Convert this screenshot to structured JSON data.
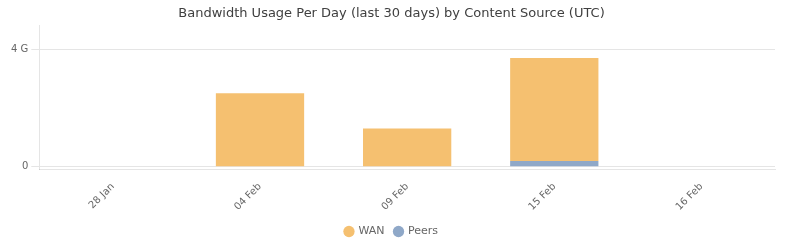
{
  "chart_data": {
    "type": "bar",
    "title": "Bandwidth Usage Per Day (last 30 days) by Content Source (UTC)",
    "categories": [
      "28 Jan",
      "04 Feb",
      "09 Feb",
      "15 Feb",
      "16 Feb"
    ],
    "series": [
      {
        "name": "Peers",
        "color": "#8fa8c8",
        "values": [
          0,
          0,
          0,
          0.2,
          0
        ]
      },
      {
        "name": "WAN",
        "color": "#f5c070",
        "values": [
          0,
          2.5,
          1.3,
          3.5,
          0
        ]
      }
    ],
    "stacked": true,
    "ylim": [
      -0.1,
      4.8
    ],
    "yticks": [
      0,
      {
        "value": 4,
        "label": "4 G"
      }
    ],
    "grid": true,
    "legend": "bottom"
  }
}
